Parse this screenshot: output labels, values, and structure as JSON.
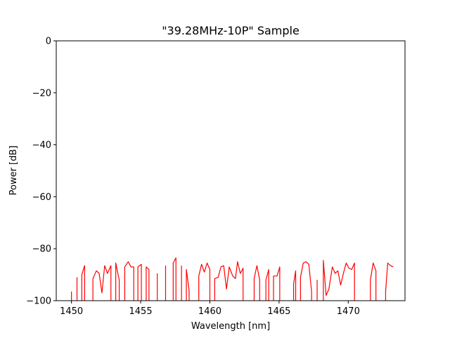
{
  "chart_data": {
    "type": "line",
    "title": "\"39.28MHz-10P\" Sample",
    "xlabel": "Wavelength [nm]",
    "ylabel": "Power [dB]",
    "xlim": [
      1448.9,
      1474.1
    ],
    "ylim": [
      -100,
      0
    ],
    "xticks": [
      1450,
      1455,
      1460,
      1465,
      1470
    ],
    "yticks": [
      0,
      -20,
      -40,
      -60,
      -80,
      -100
    ],
    "xtick_labels": [
      "1450",
      "1455",
      "1460",
      "1465",
      "1470"
    ],
    "ytick_labels": [
      "0",
      "−20",
      "−40",
      "−60",
      "−80",
      "−100"
    ],
    "grid": false,
    "line_color": "#ff0000",
    "series": [
      {
        "segments": [
          [
            [
              1450.0,
              -96.5
            ],
            [
              1450.0,
              -100
            ]
          ],
          [
            [
              1450.4,
              -100
            ],
            [
              1450.4,
              -91.0
            ]
          ],
          [
            [
              1450.75,
              -100
            ],
            [
              1450.75,
              -90.0
            ],
            [
              1450.95,
              -86.5
            ],
            [
              1450.95,
              -100
            ]
          ],
          [
            [
              1451.55,
              -100
            ],
            [
              1451.55,
              -91.5
            ],
            [
              1451.8,
              -88.5
            ],
            [
              1452.0,
              -89.5
            ],
            [
              1452.2,
              -97.0
            ],
            [
              1452.4,
              -86.5
            ],
            [
              1452.6,
              -89.5
            ],
            [
              1452.85,
              -86.5
            ],
            [
              1452.85,
              -100
            ]
          ],
          [
            [
              1453.2,
              -100
            ],
            [
              1453.2,
              -85.5
            ],
            [
              1453.45,
              -92.0
            ],
            [
              1453.45,
              -100
            ]
          ],
          [
            [
              1453.85,
              -100
            ],
            [
              1453.85,
              -87.0
            ],
            [
              1454.1,
              -85.0
            ],
            [
              1454.3,
              -87.0
            ],
            [
              1454.5,
              -87.0
            ],
            [
              1454.5,
              -100
            ]
          ],
          [
            [
              1454.8,
              -100
            ],
            [
              1454.8,
              -87.0
            ],
            [
              1455.05,
              -86.0
            ],
            [
              1455.05,
              -100
            ]
          ],
          [
            [
              1455.4,
              -100
            ],
            [
              1455.4,
              -87.0
            ],
            [
              1455.6,
              -88.0
            ],
            [
              1455.6,
              -100
            ]
          ],
          [
            [
              1456.2,
              -100
            ],
            [
              1456.2,
              -89.5
            ]
          ],
          [
            [
              1456.8,
              -100
            ],
            [
              1456.8,
              -86.5
            ]
          ],
          [
            [
              1457.35,
              -100
            ],
            [
              1457.35,
              -85.5
            ],
            [
              1457.55,
              -83.5
            ],
            [
              1457.55,
              -100
            ]
          ],
          [
            [
              1457.95,
              -100
            ],
            [
              1457.95,
              -86.5
            ]
          ],
          [
            [
              1458.3,
              -100
            ],
            [
              1458.3,
              -88.0
            ],
            [
              1458.5,
              -96.0
            ],
            [
              1458.5,
              -100
            ]
          ],
          [
            [
              1459.2,
              -100
            ],
            [
              1459.2,
              -90.5
            ],
            [
              1459.4,
              -86.0
            ],
            [
              1459.6,
              -89.0
            ],
            [
              1459.8,
              -85.5
            ],
            [
              1460.0,
              -88.0
            ],
            [
              1460.0,
              -100
            ]
          ],
          [
            [
              1460.35,
              -100
            ],
            [
              1460.35,
              -91.5
            ],
            [
              1460.6,
              -91.0
            ],
            [
              1460.8,
              -87.0
            ],
            [
              1461.0,
              -86.5
            ],
            [
              1461.2,
              -95.5
            ],
            [
              1461.4,
              -87.0
            ],
            [
              1461.65,
              -90.5
            ],
            [
              1461.85,
              -91.5
            ],
            [
              1462.0,
              -85.0
            ],
            [
              1462.2,
              -89.5
            ],
            [
              1462.4,
              -87.5
            ],
            [
              1462.4,
              -100
            ]
          ],
          [
            [
              1463.2,
              -100
            ],
            [
              1463.2,
              -91.5
            ],
            [
              1463.4,
              -86.5
            ],
            [
              1463.6,
              -92.0
            ],
            [
              1463.6,
              -100
            ]
          ],
          [
            [
              1464.05,
              -100
            ],
            [
              1464.05,
              -92.0
            ],
            [
              1464.25,
              -88.0
            ],
            [
              1464.25,
              -100
            ]
          ],
          [
            [
              1464.6,
              -100
            ],
            [
              1464.6,
              -90.5
            ],
            [
              1464.85,
              -90.5
            ],
            [
              1465.05,
              -87.0
            ],
            [
              1465.05,
              -100
            ]
          ],
          [
            [
              1466.05,
              -100
            ],
            [
              1466.05,
              -93.5
            ],
            [
              1466.2,
              -88.5
            ],
            [
              1466.2,
              -100
            ]
          ],
          [
            [
              1466.55,
              -100
            ],
            [
              1466.55,
              -91.0
            ],
            [
              1466.75,
              -85.5
            ],
            [
              1466.95,
              -85.0
            ],
            [
              1467.15,
              -86.0
            ],
            [
              1467.35,
              -96.5
            ],
            [
              1467.35,
              -100
            ]
          ],
          [
            [
              1467.75,
              -100
            ],
            [
              1467.75,
              -92.0
            ]
          ],
          [
            [
              1468.2,
              -100
            ],
            [
              1468.2,
              -84.5
            ],
            [
              1468.4,
              -98.0
            ],
            [
              1468.6,
              -95.5
            ],
            [
              1468.85,
              -87.0
            ],
            [
              1469.05,
              -89.5
            ],
            [
              1469.25,
              -88.5
            ],
            [
              1469.45,
              -94.0
            ],
            [
              1469.65,
              -89.5
            ],
            [
              1469.85,
              -85.5
            ],
            [
              1470.05,
              -87.5
            ],
            [
              1470.25,
              -88.0
            ],
            [
              1470.45,
              -85.5
            ],
            [
              1470.45,
              -100
            ]
          ],
          [
            [
              1471.6,
              -100
            ],
            [
              1471.6,
              -92.0
            ],
            [
              1471.8,
              -85.5
            ],
            [
              1472.0,
              -88.5
            ],
            [
              1472.0,
              -100
            ]
          ],
          [
            [
              1472.7,
              -100
            ],
            [
              1472.7,
              -96.5
            ],
            [
              1472.85,
              -85.5
            ],
            [
              1473.05,
              -86.5
            ],
            [
              1473.25,
              -87.0
            ]
          ]
        ]
      }
    ]
  }
}
